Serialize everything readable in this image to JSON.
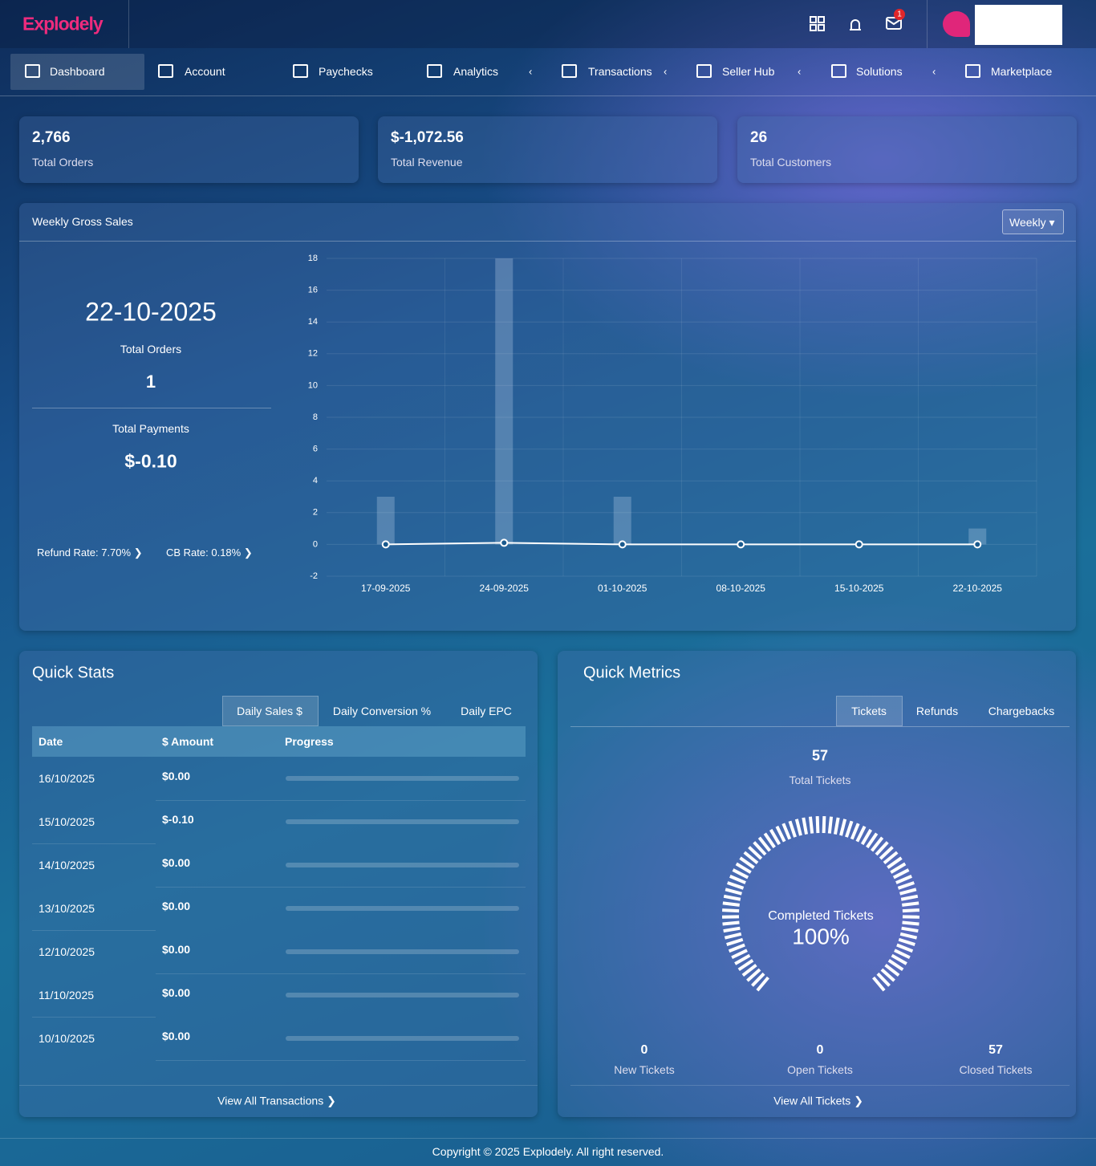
{
  "header": {
    "brand": "Explodely",
    "mail_count": 1
  },
  "nav": [
    "Dashboard",
    "Account",
    "Paychecks",
    "Analytics",
    "Transactions",
    "Seller Hub",
    "Solutions",
    "Marketplace"
  ],
  "stats": [
    {
      "value": "2,766",
      "label": "Total Orders"
    },
    {
      "value": "$-1,072.56",
      "label": "Total Revenue"
    },
    {
      "value": "26",
      "label": "Total Customers"
    }
  ],
  "weekly": {
    "title": "Weekly Gross Sales",
    "period": "Weekly",
    "date": "22-10-2025",
    "orders_label": "Total Orders",
    "orders": 1,
    "payments_label": "Total Payments",
    "payments": "$-0.10",
    "refund_rate": "Refund Rate: 7.70%",
    "cb_rate": "CB Rate: 0.18%",
    "chart": {
      "type": "bar",
      "categories": [
        "17-09-2025",
        "24-09-2025",
        "01-10-2025",
        "08-10-2025",
        "15-10-2025",
        "22-10-2025"
      ],
      "bars": {
        "values": [
          3,
          18,
          3,
          0,
          0,
          1
        ],
        "color": "rgba(200,220,240,0.28)"
      },
      "line": {
        "values": [
          0,
          0.1,
          0,
          0,
          0,
          0
        ],
        "color": "#ffffff"
      },
      "ylim": [
        -2,
        18
      ],
      "yticks": [
        -2,
        0,
        2,
        4,
        6,
        8,
        10,
        12,
        14,
        16,
        18
      ],
      "grid": true
    }
  },
  "quick_stats": {
    "title": "Quick Stats",
    "tabs": [
      "Daily Sales $",
      "Daily Conversion %",
      "Daily EPC"
    ],
    "table": {
      "headers": [
        "Date",
        "$ Amount",
        "Progress"
      ],
      "rows": [
        [
          "16/10/2025",
          "$0.00"
        ],
        [
          "15/10/2025",
          "$-0.10"
        ],
        [
          "14/10/2025",
          "$0.00"
        ],
        [
          "13/10/2025",
          "$0.00"
        ],
        [
          "12/10/2025",
          "$0.00"
        ],
        [
          "11/10/2025",
          "$0.00"
        ],
        [
          "10/10/2025",
          "$0.00"
        ]
      ]
    },
    "link": "View All Transactions"
  },
  "quick_metrics": {
    "title": "Quick Metrics",
    "tabs": [
      "Tickets",
      "Refunds",
      "Chargebacks"
    ],
    "total": 57,
    "total_label": "Total Tickets",
    "gauge": {
      "label": "Completed Tickets",
      "value": 100,
      "value_label": "100%",
      "max": 100
    },
    "counts": [
      {
        "value": 0,
        "label": "New Tickets"
      },
      {
        "value": 0,
        "label": "Open Tickets"
      },
      {
        "value": 57,
        "label": "Closed Tickets"
      }
    ],
    "link": "View All Tickets"
  },
  "footer": "Copyright © 2025 Explodely. All right reserved."
}
